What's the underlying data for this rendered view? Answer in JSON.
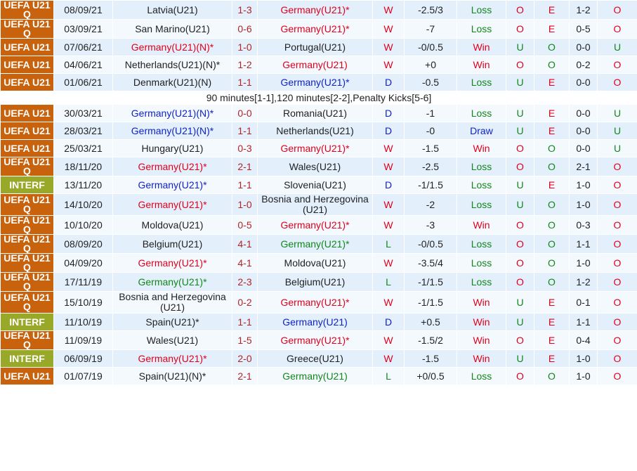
{
  "table": {
    "rows": [
      {
        "comp": "UEFA U21 Q",
        "date": "08/09/21",
        "home": "Latvia(U21)",
        "home_color": "black",
        "score": "1-3",
        "away": "Germany(U21)*",
        "away_color": "red",
        "result": "W",
        "handicap": "-2.5/3",
        "hresult": "Loss",
        "ou": "O",
        "eo": "E",
        "ht": "1-2",
        "htou": "O"
      },
      {
        "comp": "UEFA U21 Q",
        "date": "03/09/21",
        "home": "San Marino(U21)",
        "home_color": "black",
        "score": "0-6",
        "away": "Germany(U21)*",
        "away_color": "red",
        "result": "W",
        "handicap": "-7",
        "hresult": "Loss",
        "ou": "O",
        "eo": "E",
        "ht": "0-5",
        "htou": "O"
      },
      {
        "comp": "UEFA U21",
        "date": "07/06/21",
        "home": "Germany(U21)(N)*",
        "home_color": "red",
        "score": "1-0",
        "away": "Portugal(U21)",
        "away_color": "black",
        "result": "W",
        "handicap": "-0/0.5",
        "hresult": "Win",
        "ou": "U",
        "eo": "O",
        "ht": "0-0",
        "htou": "U"
      },
      {
        "comp": "UEFA U21",
        "date": "04/06/21",
        "home": "Netherlands(U21)(N)*",
        "home_color": "black",
        "score": "1-2",
        "away": "Germany(U21)",
        "away_color": "red",
        "result": "W",
        "handicap": "+0",
        "hresult": "Win",
        "ou": "O",
        "eo": "O",
        "ht": "0-2",
        "htou": "O"
      },
      {
        "comp": "UEFA U21",
        "date": "01/06/21",
        "home": "Denmark(U21)(N)",
        "home_color": "black",
        "score": "1-1",
        "away": "Germany(U21)*",
        "away_color": "blue",
        "result": "D",
        "handicap": "-0.5",
        "hresult": "Loss",
        "ou": "U",
        "eo": "E",
        "ht": "0-0",
        "htou": "O"
      },
      {
        "note": "90 minutes[1-1],120 minutes[2-2],Penalty Kicks[5-6]"
      },
      {
        "comp": "UEFA U21",
        "date": "30/03/21",
        "home": "Germany(U21)(N)*",
        "home_color": "blue",
        "score": "0-0",
        "away": "Romania(U21)",
        "away_color": "black",
        "result": "D",
        "handicap": "-1",
        "hresult": "Loss",
        "ou": "U",
        "eo": "E",
        "ht": "0-0",
        "htou": "U"
      },
      {
        "comp": "UEFA U21",
        "date": "28/03/21",
        "home": "Germany(U21)(N)*",
        "home_color": "blue",
        "score": "1-1",
        "away": "Netherlands(U21)",
        "away_color": "black",
        "result": "D",
        "handicap": "-0",
        "hresult": "Draw",
        "ou": "U",
        "eo": "E",
        "ht": "0-0",
        "htou": "U"
      },
      {
        "comp": "UEFA U21",
        "date": "25/03/21",
        "home": "Hungary(U21)",
        "home_color": "black",
        "score": "0-3",
        "away": "Germany(U21)*",
        "away_color": "red",
        "result": "W",
        "handicap": "-1.5",
        "hresult": "Win",
        "ou": "O",
        "eo": "O",
        "ht": "0-0",
        "htou": "U"
      },
      {
        "comp": "UEFA U21 Q",
        "date": "18/11/20",
        "home": "Germany(U21)*",
        "home_color": "red",
        "score": "2-1",
        "away": "Wales(U21)",
        "away_color": "black",
        "result": "W",
        "handicap": "-2.5",
        "hresult": "Loss",
        "ou": "O",
        "eo": "O",
        "ht": "2-1",
        "htou": "O"
      },
      {
        "comp": "INTERF",
        "date": "13/11/20",
        "home": "Germany(U21)*",
        "home_color": "blue",
        "score": "1-1",
        "away": "Slovenia(U21)",
        "away_color": "black",
        "result": "D",
        "handicap": "-1/1.5",
        "hresult": "Loss",
        "ou": "U",
        "eo": "E",
        "ht": "1-0",
        "htou": "O"
      },
      {
        "comp": "UEFA U21 Q",
        "date": "14/10/20",
        "home": "Germany(U21)*",
        "home_color": "red",
        "score": "1-0",
        "away": "Bosnia and Herzegovina (U21)",
        "away_color": "black",
        "result": "W",
        "handicap": "-2",
        "hresult": "Loss",
        "ou": "U",
        "eo": "O",
        "ht": "1-0",
        "htou": "O"
      },
      {
        "comp": "UEFA U21 Q",
        "date": "10/10/20",
        "home": "Moldova(U21)",
        "home_color": "black",
        "score": "0-5",
        "away": "Germany(U21)*",
        "away_color": "red",
        "result": "W",
        "handicap": "-3",
        "hresult": "Win",
        "ou": "O",
        "eo": "O",
        "ht": "0-3",
        "htou": "O"
      },
      {
        "comp": "UEFA U21 Q",
        "date": "08/09/20",
        "home": "Belgium(U21)",
        "home_color": "black",
        "score": "4-1",
        "away": "Germany(U21)*",
        "away_color": "green",
        "result": "L",
        "handicap": "-0/0.5",
        "hresult": "Loss",
        "ou": "O",
        "eo": "O",
        "ht": "1-1",
        "htou": "O"
      },
      {
        "comp": "UEFA U21 Q",
        "date": "04/09/20",
        "home": "Germany(U21)*",
        "home_color": "red",
        "score": "4-1",
        "away": "Moldova(U21)",
        "away_color": "black",
        "result": "W",
        "handicap": "-3.5/4",
        "hresult": "Loss",
        "ou": "O",
        "eo": "O",
        "ht": "1-0",
        "htou": "O"
      },
      {
        "comp": "UEFA U21 Q",
        "date": "17/11/19",
        "home": "Germany(U21)*",
        "home_color": "green",
        "score": "2-3",
        "away": "Belgium(U21)",
        "away_color": "black",
        "result": "L",
        "handicap": "-1/1.5",
        "hresult": "Loss",
        "ou": "O",
        "eo": "O",
        "ht": "1-2",
        "htou": "O"
      },
      {
        "comp": "UEFA U21 Q",
        "date": "15/10/19",
        "home": "Bosnia and Herzegovina (U21)",
        "home_color": "black",
        "score": "0-2",
        "away": "Germany(U21)*",
        "away_color": "red",
        "result": "W",
        "handicap": "-1/1.5",
        "hresult": "Win",
        "ou": "U",
        "eo": "E",
        "ht": "0-1",
        "htou": "O"
      },
      {
        "comp": "INTERF",
        "date": "11/10/19",
        "home": "Spain(U21)*",
        "home_color": "black",
        "score": "1-1",
        "away": "Germany(U21)",
        "away_color": "blue",
        "result": "D",
        "handicap": "+0.5",
        "hresult": "Win",
        "ou": "U",
        "eo": "E",
        "ht": "1-1",
        "htou": "O"
      },
      {
        "comp": "UEFA U21 Q",
        "date": "11/09/19",
        "home": "Wales(U21)",
        "home_color": "black",
        "score": "1-5",
        "away": "Germany(U21)*",
        "away_color": "red",
        "result": "W",
        "handicap": "-1.5/2",
        "hresult": "Win",
        "ou": "O",
        "eo": "E",
        "ht": "0-4",
        "htou": "O"
      },
      {
        "comp": "INTERF",
        "date": "06/09/19",
        "home": "Germany(U21)*",
        "home_color": "red",
        "score": "2-0",
        "away": "Greece(U21)",
        "away_color": "black",
        "result": "W",
        "handicap": "-1.5",
        "hresult": "Win",
        "ou": "U",
        "eo": "E",
        "ht": "1-0",
        "htou": "O"
      },
      {
        "comp": "UEFA U21",
        "date": "01/07/19",
        "home": "Spain(U21)(N)*",
        "home_color": "black",
        "score": "2-1",
        "away": "Germany(U21)",
        "away_color": "green",
        "result": "L",
        "handicap": "+0/0.5",
        "hresult": "Loss",
        "ou": "O",
        "eo": "O",
        "ht": "1-0",
        "htou": "O"
      }
    ]
  }
}
